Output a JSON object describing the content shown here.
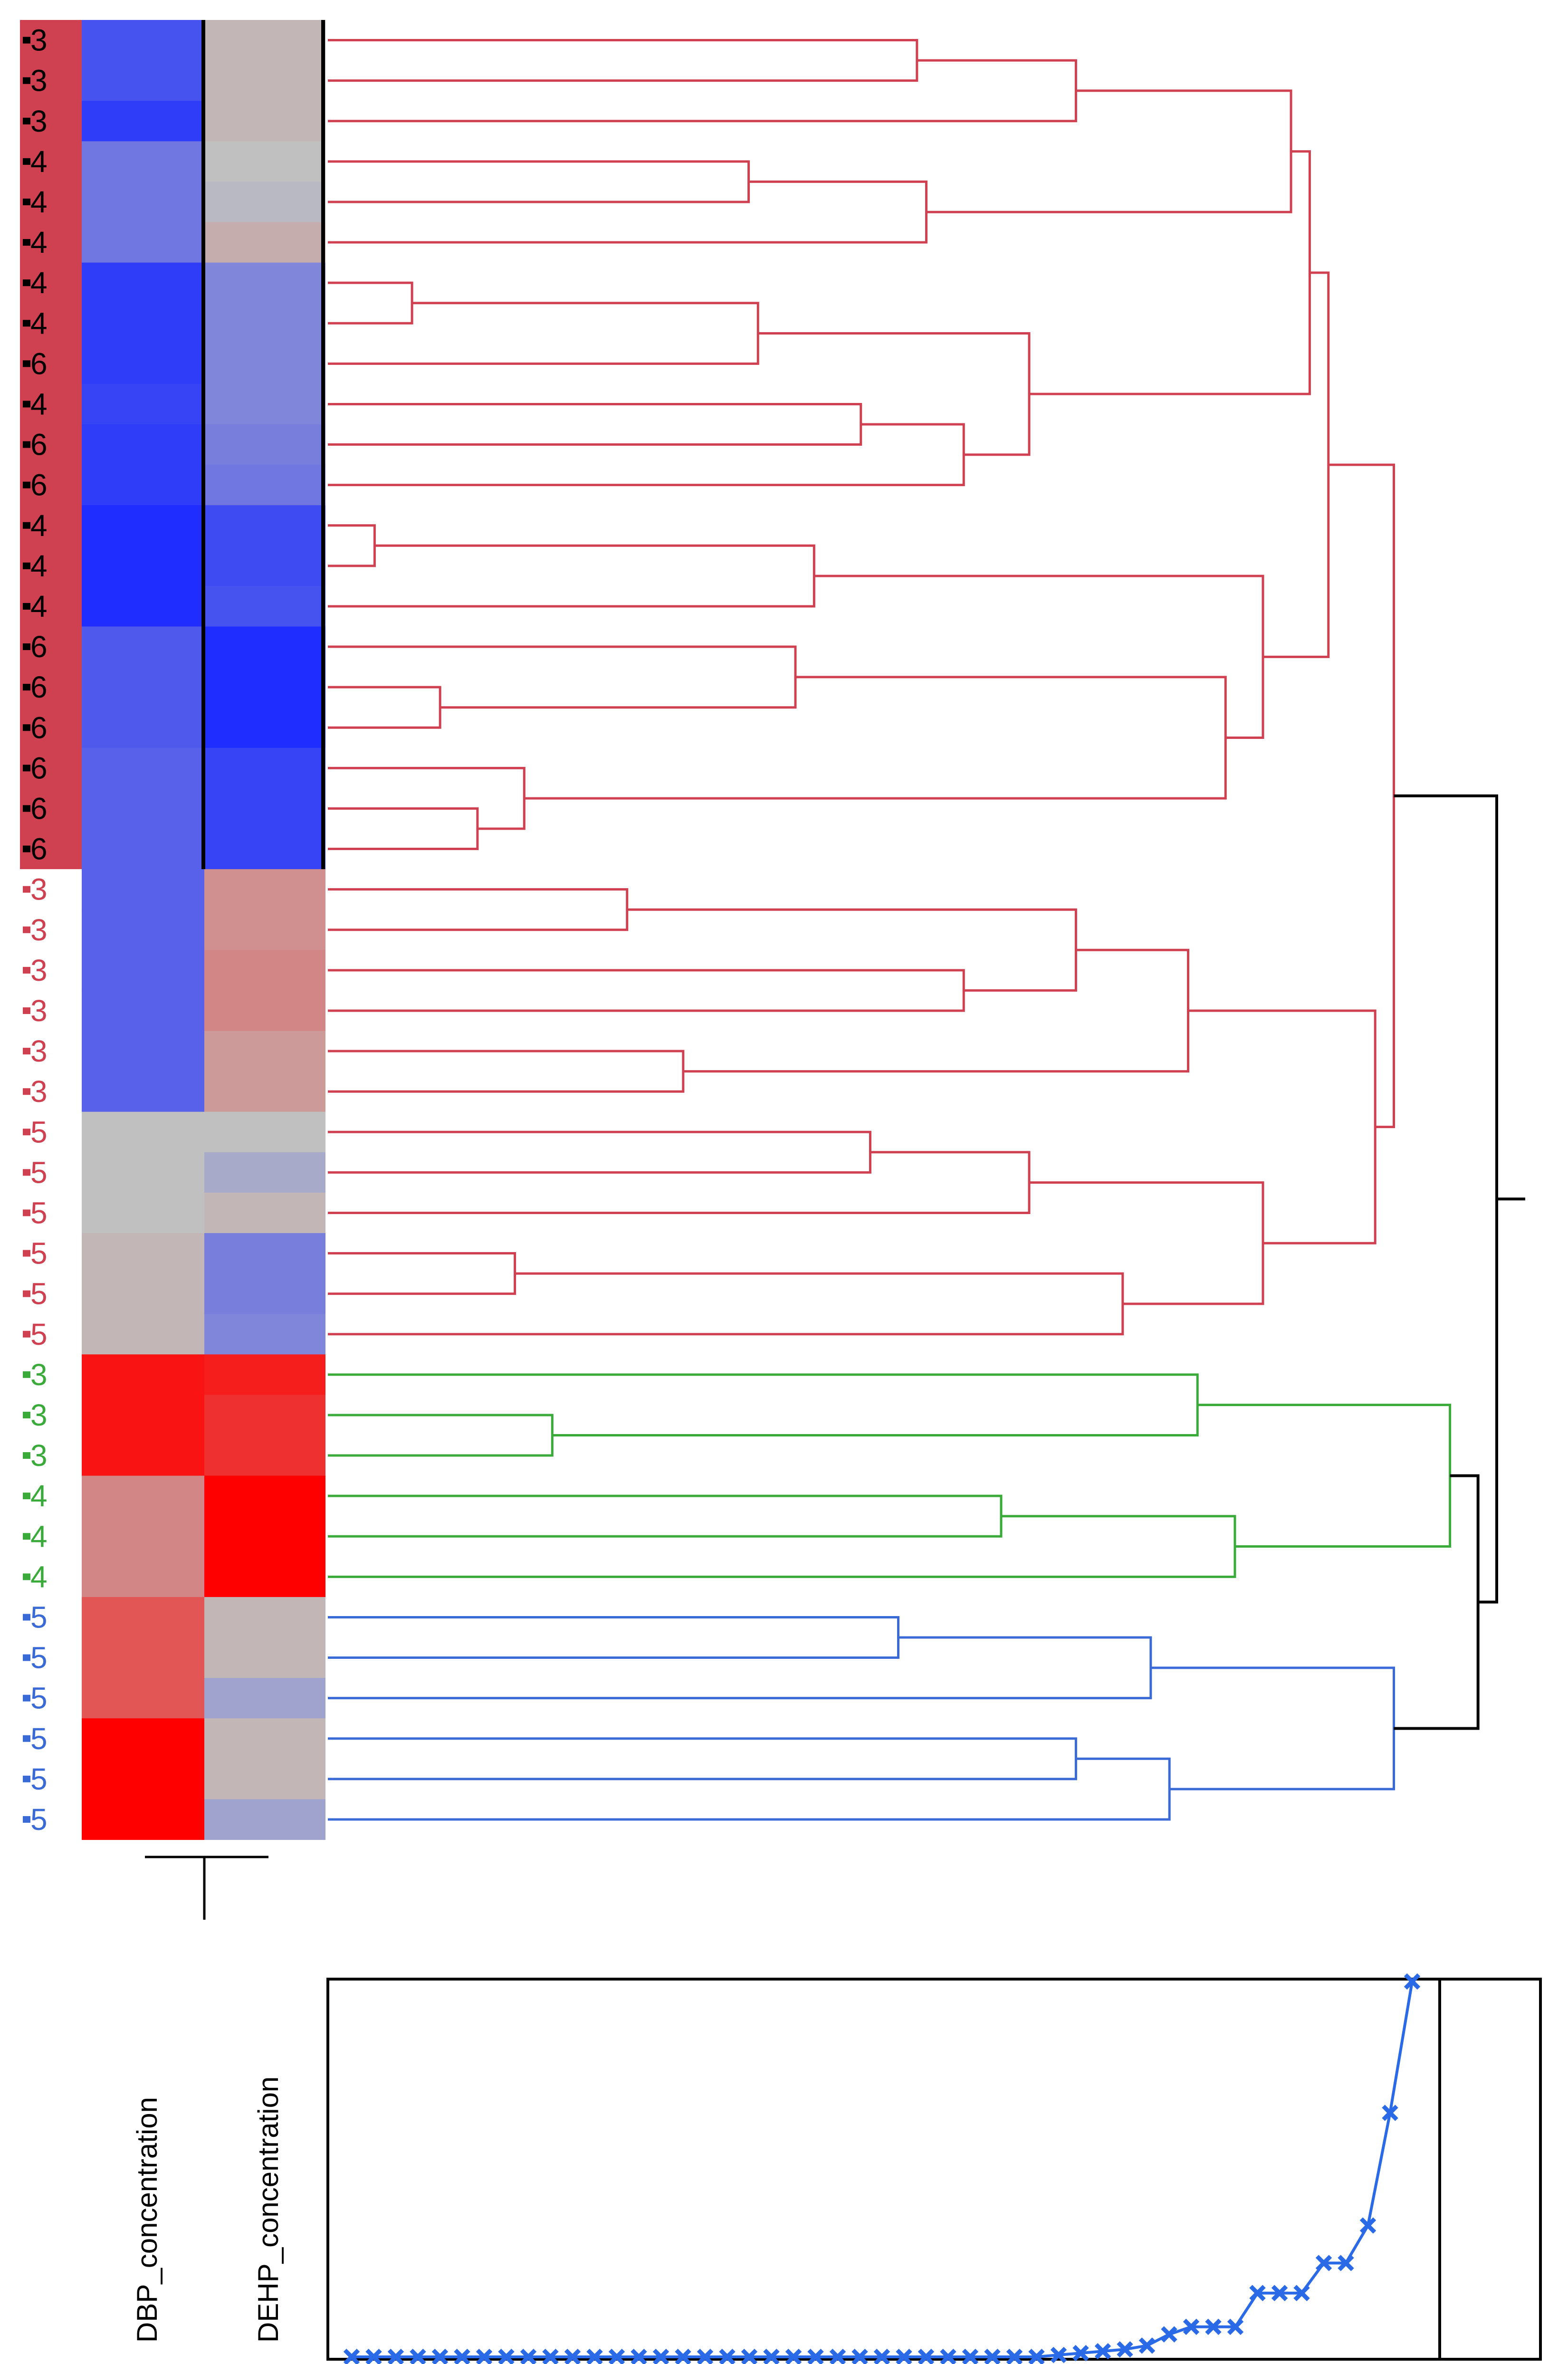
{
  "chart_data": [
    {
      "type": "heatmap",
      "title": "",
      "columns": [
        "DBP_concentration",
        "DEHP_concentration"
      ],
      "row_labels": [
        "3",
        "3",
        "3",
        "4",
        "4",
        "4",
        "4",
        "4",
        "6",
        "4",
        "6",
        "6",
        "4",
        "4",
        "4",
        "6",
        "6",
        "6",
        "6",
        "6",
        "6",
        "3",
        "3",
        "3",
        "3",
        "3",
        "3",
        "5",
        "5",
        "5",
        "5",
        "5",
        "5",
        "3",
        "3",
        "3",
        "4",
        "4",
        "4",
        "5",
        "5",
        "5",
        "5",
        "5",
        "5"
      ],
      "row_groups": [
        "red",
        "red",
        "red",
        "red",
        "red",
        "red",
        "red",
        "red",
        "red",
        "red",
        "red",
        "red",
        "red",
        "red",
        "red",
        "red",
        "red",
        "red",
        "red",
        "red",
        "red",
        "red",
        "red",
        "red",
        "red",
        "red",
        "red",
        "red",
        "red",
        "red",
        "red",
        "red",
        "red",
        "green",
        "green",
        "green",
        "green",
        "green",
        "green",
        "blue",
        "blue",
        "blue",
        "blue",
        "blue",
        "blue"
      ],
      "highlighted_rows": 21,
      "values": [
        [
          -0.75,
          0.05
        ],
        [
          -0.75,
          0.05
        ],
        [
          -0.9,
          0.05
        ],
        [
          -0.5,
          0.0
        ],
        [
          -0.5,
          -0.05
        ],
        [
          -0.5,
          0.1
        ],
        [
          -0.9,
          -0.4
        ],
        [
          -0.9,
          -0.4
        ],
        [
          -0.9,
          -0.4
        ],
        [
          -0.85,
          -0.4
        ],
        [
          -0.9,
          -0.45
        ],
        [
          -0.9,
          -0.5
        ],
        [
          -1.0,
          -0.8
        ],
        [
          -1.0,
          -0.8
        ],
        [
          -1.0,
          -0.75
        ],
        [
          -0.7,
          -1.0
        ],
        [
          -0.7,
          -1.0
        ],
        [
          -0.7,
          -1.0
        ],
        [
          -0.65,
          -0.85
        ],
        [
          -0.65,
          -0.85
        ],
        [
          -0.65,
          -0.85
        ],
        [
          -0.65,
          0.25
        ],
        [
          -0.65,
          0.25
        ],
        [
          -0.65,
          0.3
        ],
        [
          -0.65,
          0.3
        ],
        [
          -0.65,
          0.2
        ],
        [
          -0.65,
          0.2
        ],
        [
          0.0,
          0.0
        ],
        [
          0.0,
          -0.15
        ],
        [
          0.0,
          0.05
        ],
        [
          0.05,
          -0.45
        ],
        [
          0.05,
          -0.45
        ],
        [
          0.05,
          -0.4
        ],
        [
          0.9,
          0.85
        ],
        [
          0.9,
          0.75
        ],
        [
          0.9,
          0.75
        ],
        [
          0.3,
          1.0
        ],
        [
          0.3,
          1.0
        ],
        [
          0.3,
          1.0
        ],
        [
          0.55,
          0.05
        ],
        [
          0.55,
          0.05
        ],
        [
          0.55,
          -0.2
        ],
        [
          1.0,
          0.05
        ],
        [
          1.0,
          0.05
        ],
        [
          1.0,
          -0.2
        ]
      ],
      "color_scale": {
        "low": "#1f2eff",
        "mid": "#c0c0c0",
        "high": "#ff0000"
      },
      "group_colors": {
        "red": "#cf4050",
        "green": "#3aaa3a",
        "blue": "#3a6ad6"
      }
    },
    {
      "type": "dendrogram",
      "leaves": 45,
      "merges": [
        {
          "a": {
            "leaf": 0
          },
          "b": {
            "leaf": 1
          },
          "h": 0.63
        },
        {
          "a": {
            "node": 0
          },
          "b": {
            "leaf": 2
          },
          "h": 0.8
        },
        {
          "a": {
            "leaf": 3
          },
          "b": {
            "leaf": 4
          },
          "h": 0.45
        },
        {
          "a": {
            "node": 2
          },
          "b": {
            "leaf": 5
          },
          "h": 0.64
        },
        {
          "a": {
            "node": 1
          },
          "b": {
            "node": 3
          },
          "h": 1.03
        },
        {
          "a": {
            "leaf": 6
          },
          "b": {
            "leaf": 7
          },
          "h": 0.09
        },
        {
          "a": {
            "node": 5
          },
          "b": {
            "leaf": 8
          },
          "h": 0.46
        },
        {
          "a": {
            "leaf": 9
          },
          "b": {
            "leaf": 10
          },
          "h": 0.57
        },
        {
          "a": {
            "node": 7
          },
          "b": {
            "leaf": 11
          },
          "h": 0.68
        },
        {
          "a": {
            "node": 6
          },
          "b": {
            "node": 8
          },
          "h": 0.75
        },
        {
          "a": {
            "node": 4
          },
          "b": {
            "node": 9
          },
          "h": 1.05
        },
        {
          "a": {
            "leaf": 12
          },
          "b": {
            "leaf": 13
          },
          "h": 0.05
        },
        {
          "a": {
            "node": 11
          },
          "b": {
            "leaf": 14
          },
          "h": 0.52
        },
        {
          "a": {
            "leaf": 16
          },
          "b": {
            "leaf": 17
          },
          "h": 0.12
        },
        {
          "a": {
            "leaf": 15
          },
          "b": {
            "node": 13
          },
          "h": 0.5
        },
        {
          "a": {
            "leaf": 19
          },
          "b": {
            "leaf": 20
          },
          "h": 0.16
        },
        {
          "a": {
            "leaf": 18
          },
          "b": {
            "node": 15
          },
          "h": 0.21
        },
        {
          "a": {
            "node": 14
          },
          "b": {
            "node": 16
          },
          "h": 0.96
        },
        {
          "a": {
            "node": 12
          },
          "b": {
            "node": 17
          },
          "h": 1.0
        },
        {
          "a": {
            "node": 10
          },
          "b": {
            "node": 18
          },
          "h": 1.07
        },
        {
          "a": {
            "leaf": 21
          },
          "b": {
            "leaf": 22
          },
          "h": 0.32
        },
        {
          "a": {
            "leaf": 23
          },
          "b": {
            "leaf": 24
          },
          "h": 0.68
        },
        {
          "a": {
            "node": 20
          },
          "b": {
            "node": 21
          },
          "h": 0.8
        },
        {
          "a": {
            "leaf": 25
          },
          "b": {
            "leaf": 26
          },
          "h": 0.38
        },
        {
          "a": {
            "node": 22
          },
          "b": {
            "node": 23
          },
          "h": 0.92
        },
        {
          "a": {
            "leaf": 27
          },
          "b": {
            "leaf": 28
          },
          "h": 0.58
        },
        {
          "a": {
            "node": 25
          },
          "b": {
            "leaf": 29
          },
          "h": 0.75
        },
        {
          "a": {
            "leaf": 30
          },
          "b": {
            "leaf": 31
          },
          "h": 0.2
        },
        {
          "a": {
            "node": 27
          },
          "b": {
            "leaf": 32
          },
          "h": 0.85
        },
        {
          "a": {
            "node": 26
          },
          "b": {
            "node": 28
          },
          "h": 1.0
        },
        {
          "a": {
            "node": 24
          },
          "b": {
            "node": 29
          },
          "h": 1.12
        },
        {
          "a": {
            "node": 19
          },
          "b": {
            "node": 30
          },
          "h": 1.14
        },
        {
          "a": {
            "leaf": 34
          },
          "b": {
            "leaf": 35
          },
          "h": 0.24
        },
        {
          "a": {
            "leaf": 33
          },
          "b": {
            "node": 32
          },
          "h": 0.93
        },
        {
          "a": {
            "leaf": 36
          },
          "b": {
            "leaf": 37
          },
          "h": 0.72
        },
        {
          "a": {
            "node": 34
          },
          "b": {
            "leaf": 38
          },
          "h": 0.97
        },
        {
          "a": {
            "node": 33
          },
          "b": {
            "node": 35
          },
          "h": 1.2
        },
        {
          "a": {
            "leaf": 39
          },
          "b": {
            "leaf": 40
          },
          "h": 0.61
        },
        {
          "a": {
            "node": 37
          },
          "b": {
            "leaf": 41
          },
          "h": 0.88
        },
        {
          "a": {
            "leaf": 42
          },
          "b": {
            "leaf": 43
          },
          "h": 0.8
        },
        {
          "a": {
            "node": 39
          },
          "b": {
            "leaf": 44
          },
          "h": 0.9
        },
        {
          "a": {
            "node": 38
          },
          "b": {
            "node": 40
          },
          "h": 1.14
        },
        {
          "a": {
            "node": 36
          },
          "b": {
            "node": 41
          },
          "h": 1.23
        },
        {
          "a": {
            "node": 31
          },
          "b": {
            "node": 42
          },
          "h": 1.25
        }
      ],
      "root_height": 1.25
    },
    {
      "type": "line",
      "title": "",
      "xlabel": "",
      "ylabel": "",
      "y": [
        0,
        0,
        0,
        0,
        0,
        0,
        0,
        0,
        0,
        0,
        0,
        0,
        0,
        0,
        0,
        0,
        0,
        0,
        0,
        0,
        0,
        0,
        0,
        0,
        0,
        0,
        0,
        0,
        0,
        0,
        0,
        0,
        0.005,
        0.01,
        0.015,
        0.02,
        0.03,
        0.06,
        0.08,
        0.08,
        0.08,
        0.17,
        0.17,
        0.17,
        0.25,
        0.25,
        0.35,
        0.65,
        1.0
      ],
      "ylim": [
        0,
        1
      ],
      "cutoff_index": 46,
      "color": "#2a6ae6",
      "marker": "x"
    }
  ]
}
